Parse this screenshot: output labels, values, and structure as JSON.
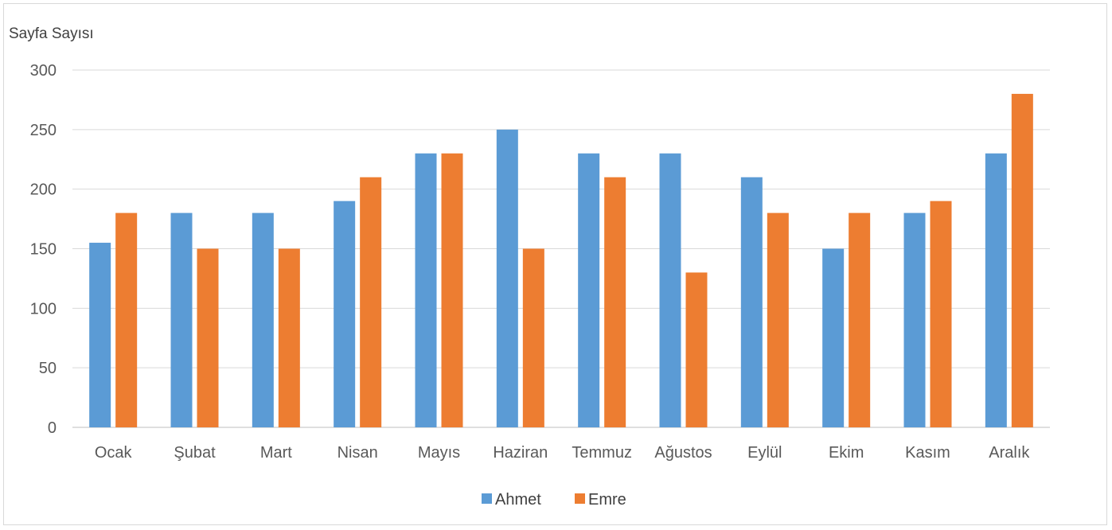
{
  "chart_data": {
    "type": "bar",
    "title": "",
    "xlabel": "",
    "ylabel": "Sayfa Sayısı",
    "ylim": [
      0,
      300
    ],
    "yticks": [
      0,
      50,
      100,
      150,
      200,
      250,
      300
    ],
    "grid": true,
    "legend_position": "bottom",
    "categories": [
      "Ocak",
      "Şubat",
      "Mart",
      "Nisan",
      "Mayıs",
      "Haziran",
      "Temmuz",
      "Ağustos",
      "Eylül",
      "Ekim",
      "Kasım",
      "Aralık"
    ],
    "series": [
      {
        "name": "Ahmet",
        "color": "#5b9bd5",
        "values": [
          155,
          180,
          180,
          190,
          230,
          250,
          230,
          230,
          210,
          150,
          180,
          230
        ]
      },
      {
        "name": "Emre",
        "color": "#ed7d31",
        "values": [
          180,
          150,
          150,
          210,
          230,
          150,
          210,
          130,
          180,
          180,
          190,
          280
        ]
      }
    ]
  }
}
